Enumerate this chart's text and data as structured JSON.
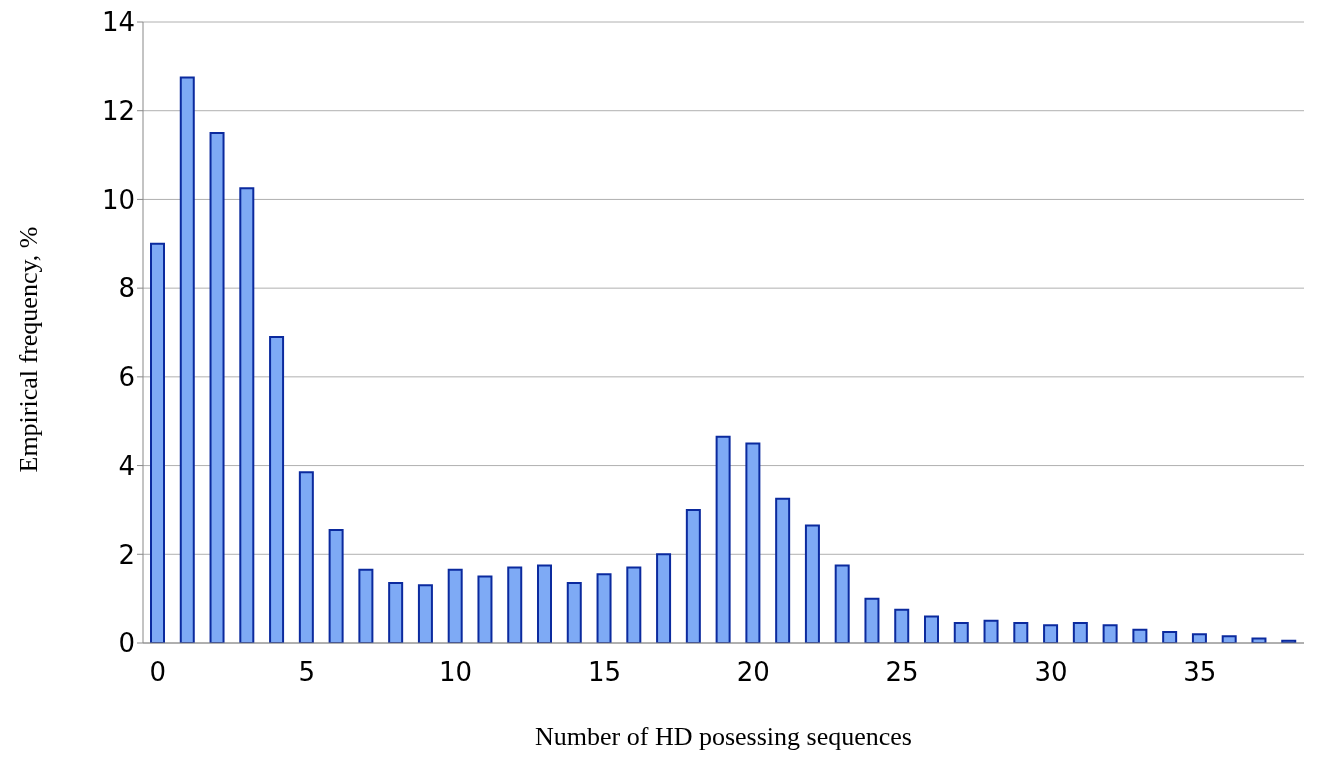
{
  "chart_data": {
    "type": "bar",
    "xlabel": "Number of HD posessing sequences",
    "ylabel": "Empirical frequency, %",
    "x": [
      0,
      1,
      2,
      3,
      4,
      5,
      6,
      7,
      8,
      9,
      10,
      11,
      12,
      13,
      14,
      15,
      16,
      17,
      18,
      19,
      20,
      21,
      22,
      23,
      24,
      25,
      26,
      27,
      28,
      29,
      30,
      31,
      32,
      33,
      34,
      35,
      36,
      37,
      38
    ],
    "values": [
      9.0,
      12.75,
      11.5,
      10.25,
      6.9,
      3.85,
      2.55,
      1.65,
      1.35,
      1.3,
      1.65,
      1.5,
      1.7,
      1.75,
      1.35,
      1.55,
      1.7,
      2.0,
      3.0,
      4.65,
      4.5,
      3.25,
      2.65,
      1.75,
      1.0,
      0.75,
      0.6,
      0.45,
      0.5,
      0.45,
      0.4,
      0.45,
      0.4,
      0.3,
      0.25,
      0.2,
      0.15,
      0.1,
      0.05
    ],
    "color": "#7eaaf5",
    "xlim": [
      -0.5,
      38.5
    ],
    "xticks": [
      0,
      5,
      10,
      15,
      20,
      25,
      30,
      35
    ],
    "ylim": [
      0,
      14
    ],
    "yticks": [
      0,
      2,
      4,
      6,
      8,
      10,
      12,
      14
    ],
    "grid": "y"
  }
}
